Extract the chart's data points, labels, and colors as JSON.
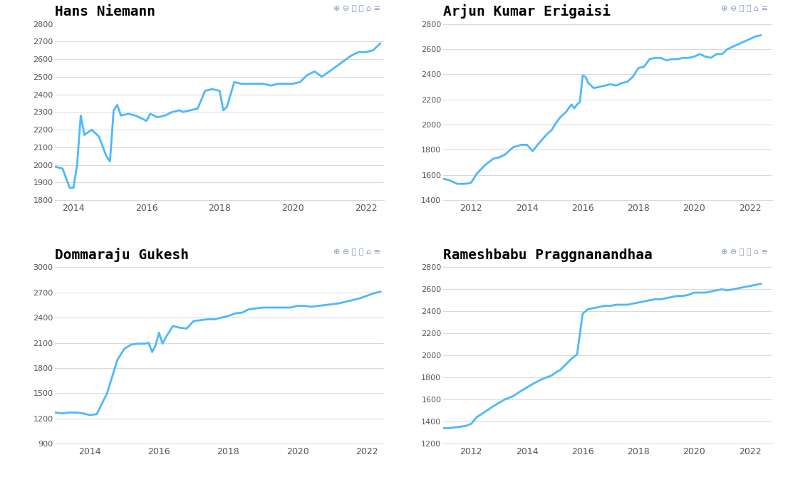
{
  "title_fontsize": 14,
  "line_color": "#4db8ff",
  "line_width": 2.0,
  "bg_color": "#ffffff",
  "grid_color": "#d8d8d8",
  "tick_color": "#555555",
  "icon_color": "#aaaaaa",
  "plots": [
    {
      "title": "Hans Niemann",
      "ylim": [
        1800,
        2800
      ],
      "yticks": [
        1800,
        1900,
        2000,
        2100,
        2200,
        2300,
        2400,
        2500,
        2600,
        2700,
        2800
      ],
      "xlim_year": [
        2013.5,
        2022.5
      ],
      "xticks": [
        2014,
        2016,
        2018,
        2020,
        2022
      ],
      "data_x": [
        2013.5,
        2013.7,
        2013.9,
        2014.0,
        2014.1,
        2014.2,
        2014.3,
        2014.5,
        2014.7,
        2014.9,
        2015.0,
        2015.1,
        2015.2,
        2015.3,
        2015.5,
        2015.7,
        2015.9,
        2016.0,
        2016.1,
        2016.2,
        2016.3,
        2016.5,
        2016.7,
        2016.9,
        2017.0,
        2017.2,
        2017.4,
        2017.6,
        2017.8,
        2018.0,
        2018.1,
        2018.2,
        2018.4,
        2018.6,
        2018.8,
        2019.0,
        2019.2,
        2019.4,
        2019.6,
        2019.8,
        2020.0,
        2020.2,
        2020.4,
        2020.6,
        2020.8,
        2021.0,
        2021.2,
        2021.4,
        2021.6,
        2021.8,
        2022.0,
        2022.2,
        2022.4
      ],
      "data_y": [
        1990,
        1980,
        1870,
        1870,
        2000,
        2280,
        2170,
        2200,
        2160,
        2050,
        2020,
        2310,
        2340,
        2280,
        2290,
        2280,
        2260,
        2250,
        2290,
        2280,
        2270,
        2280,
        2300,
        2310,
        2300,
        2310,
        2320,
        2420,
        2430,
        2420,
        2310,
        2330,
        2470,
        2460,
        2460,
        2460,
        2460,
        2450,
        2460,
        2460,
        2460,
        2470,
        2510,
        2530,
        2500,
        2530,
        2560,
        2590,
        2620,
        2640,
        2640,
        2650,
        2690
      ]
    },
    {
      "title": "Arjun Kumar Erigaisi",
      "ylim": [
        1400,
        2800
      ],
      "yticks": [
        1400,
        1600,
        1800,
        2000,
        2200,
        2400,
        2600,
        2800
      ],
      "xlim_year": [
        2011.0,
        2022.8
      ],
      "xticks": [
        2012,
        2014,
        2016,
        2018,
        2020,
        2022
      ],
      "data_x": [
        2011.0,
        2011.2,
        2011.5,
        2011.8,
        2012.0,
        2012.2,
        2012.5,
        2012.8,
        2013.0,
        2013.2,
        2013.5,
        2013.8,
        2014.0,
        2014.2,
        2014.5,
        2014.7,
        2014.9,
        2015.0,
        2015.2,
        2015.4,
        2015.5,
        2015.6,
        2015.7,
        2015.8,
        2015.9,
        2016.0,
        2016.1,
        2016.2,
        2016.4,
        2016.6,
        2016.8,
        2017.0,
        2017.2,
        2017.4,
        2017.6,
        2017.8,
        2018.0,
        2018.2,
        2018.4,
        2018.6,
        2018.8,
        2019.0,
        2019.2,
        2019.4,
        2019.6,
        2019.8,
        2020.0,
        2020.2,
        2020.4,
        2020.6,
        2020.8,
        2021.0,
        2021.2,
        2021.4,
        2021.6,
        2021.8,
        2022.0,
        2022.2,
        2022.4
      ],
      "data_y": [
        1570,
        1560,
        1530,
        1530,
        1540,
        1610,
        1680,
        1730,
        1740,
        1760,
        1820,
        1840,
        1840,
        1790,
        1870,
        1920,
        1960,
        2000,
        2060,
        2100,
        2130,
        2160,
        2130,
        2160,
        2180,
        2390,
        2380,
        2330,
        2290,
        2300,
        2310,
        2320,
        2310,
        2330,
        2340,
        2380,
        2450,
        2460,
        2520,
        2530,
        2530,
        2510,
        2520,
        2520,
        2530,
        2530,
        2540,
        2560,
        2540,
        2530,
        2560,
        2560,
        2600,
        2620,
        2640,
        2660,
        2680,
        2700,
        2710
      ]
    },
    {
      "title": "Dommaraju Gukesh",
      "ylim": [
        900,
        3000
      ],
      "yticks": [
        900,
        1200,
        1500,
        1800,
        2100,
        2400,
        2700,
        3000
      ],
      "xlim_year": [
        2013.0,
        2022.5
      ],
      "xticks": [
        2014,
        2016,
        2018,
        2020,
        2022
      ],
      "data_x": [
        2013.0,
        2013.2,
        2013.4,
        2013.6,
        2013.8,
        2014.0,
        2014.2,
        2014.5,
        2014.8,
        2015.0,
        2015.2,
        2015.4,
        2015.6,
        2015.7,
        2015.8,
        2015.9,
        2016.0,
        2016.1,
        2016.2,
        2016.4,
        2016.6,
        2016.8,
        2017.0,
        2017.2,
        2017.4,
        2017.6,
        2017.8,
        2018.0,
        2018.2,
        2018.4,
        2018.6,
        2018.8,
        2019.0,
        2019.2,
        2019.4,
        2019.6,
        2019.8,
        2020.0,
        2020.2,
        2020.4,
        2020.6,
        2020.8,
        2021.0,
        2021.2,
        2021.4,
        2021.6,
        2021.8,
        2022.0,
        2022.2,
        2022.4
      ],
      "data_y": [
        1270,
        1260,
        1270,
        1270,
        1260,
        1240,
        1250,
        1500,
        1900,
        2030,
        2080,
        2090,
        2090,
        2100,
        1990,
        2070,
        2220,
        2090,
        2170,
        2300,
        2280,
        2270,
        2360,
        2370,
        2380,
        2380,
        2400,
        2420,
        2450,
        2460,
        2500,
        2510,
        2520,
        2520,
        2520,
        2520,
        2520,
        2540,
        2540,
        2530,
        2540,
        2550,
        2560,
        2570,
        2590,
        2610,
        2630,
        2660,
        2690,
        2710
      ]
    },
    {
      "title": "Rameshbabu Praggnanandhaa",
      "ylim": [
        1200,
        2800
      ],
      "yticks": [
        1200,
        1400,
        1600,
        1800,
        2000,
        2200,
        2400,
        2600,
        2800
      ],
      "xlim_year": [
        2011.0,
        2022.8
      ],
      "xticks": [
        2012,
        2014,
        2016,
        2018,
        2020,
        2022
      ],
      "data_x": [
        2011.0,
        2011.2,
        2011.5,
        2011.8,
        2012.0,
        2012.2,
        2012.5,
        2012.8,
        2013.0,
        2013.2,
        2013.5,
        2013.8,
        2014.0,
        2014.2,
        2014.5,
        2014.7,
        2014.9,
        2015.0,
        2015.2,
        2015.4,
        2015.6,
        2015.8,
        2016.0,
        2016.2,
        2016.4,
        2016.6,
        2016.8,
        2017.0,
        2017.2,
        2017.4,
        2017.6,
        2017.8,
        2018.0,
        2018.2,
        2018.4,
        2018.6,
        2018.8,
        2019.0,
        2019.2,
        2019.4,
        2019.6,
        2019.8,
        2020.0,
        2020.2,
        2020.4,
        2020.6,
        2020.8,
        2021.0,
        2021.2,
        2021.4,
        2021.6,
        2021.8,
        2022.0,
        2022.2,
        2022.4
      ],
      "data_y": [
        1340,
        1340,
        1350,
        1360,
        1380,
        1440,
        1490,
        1540,
        1570,
        1600,
        1630,
        1680,
        1710,
        1740,
        1780,
        1800,
        1820,
        1840,
        1870,
        1920,
        1970,
        2010,
        2380,
        2420,
        2430,
        2440,
        2450,
        2450,
        2460,
        2460,
        2460,
        2470,
        2480,
        2490,
        2500,
        2510,
        2510,
        2520,
        2530,
        2540,
        2540,
        2550,
        2570,
        2570,
        2570,
        2580,
        2590,
        2600,
        2590,
        2600,
        2610,
        2620,
        2630,
        2640,
        2650
      ]
    }
  ],
  "icon_text": "⊕⊖🔍☞⌂≡"
}
